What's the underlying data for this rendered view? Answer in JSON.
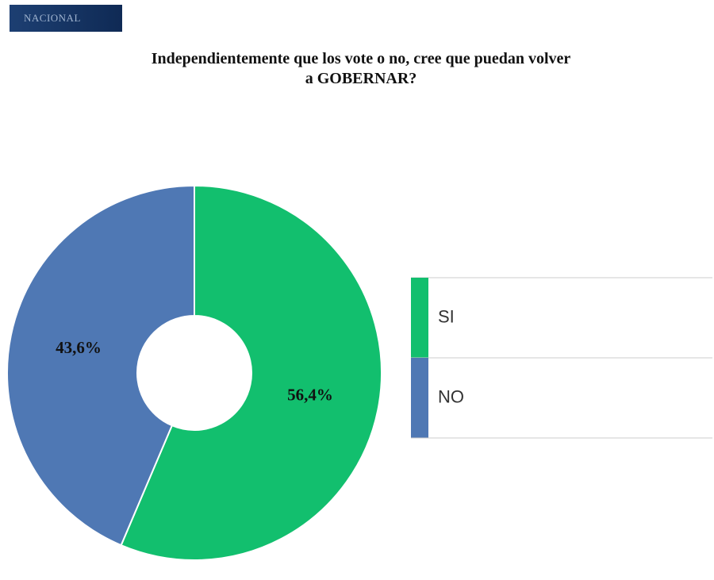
{
  "header": {
    "section": "NACIONAL"
  },
  "chart_data": {
    "type": "donut",
    "title": "Independientemente que los vote o no, cree que puedan volver a GOBERNAR?",
    "categories": [
      "SI",
      "NO"
    ],
    "values": [
      56.4,
      43.6
    ],
    "value_labels": [
      "56,4%",
      "43,6%"
    ],
    "colors": [
      "#12bf6e",
      "#4f78b4"
    ],
    "legend": "right"
  }
}
